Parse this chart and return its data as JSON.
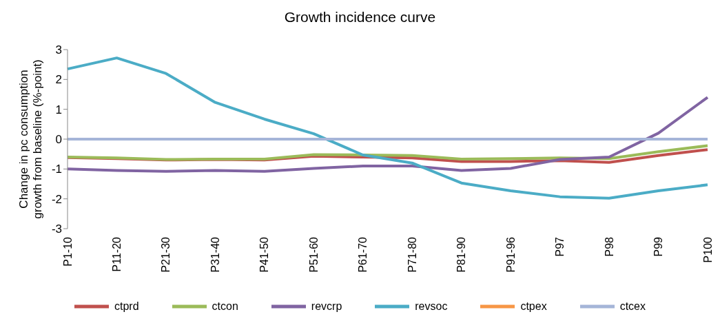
{
  "chart_data": {
    "type": "line",
    "title": "Growth incidence curve",
    "ylabel": "Change in pc consumption growth from baseline (%-point)",
    "categories": [
      "P1-10",
      "P11-20",
      "P21-30",
      "P31-40",
      "P41-50",
      "P51-60",
      "P61-70",
      "P71-80",
      "P81-90",
      "P91-96",
      "P97",
      "P98",
      "P99",
      "P100"
    ],
    "series": [
      {
        "name": "ctprd",
        "color": "#c0504d",
        "values": [
          -0.62,
          -0.65,
          -0.7,
          -0.68,
          -0.7,
          -0.57,
          -0.6,
          -0.63,
          -0.75,
          -0.75,
          -0.72,
          -0.78,
          -0.55,
          -0.35
        ]
      },
      {
        "name": "ctcon",
        "color": "#9bbb59",
        "values": [
          -0.6,
          -0.63,
          -0.68,
          -0.67,
          -0.67,
          -0.52,
          -0.53,
          -0.55,
          -0.67,
          -0.65,
          -0.63,
          -0.65,
          -0.42,
          -0.22
        ]
      },
      {
        "name": "revcrp",
        "color": "#8064a2",
        "values": [
          -1.0,
          -1.05,
          -1.08,
          -1.05,
          -1.08,
          -0.98,
          -0.9,
          -0.9,
          -1.05,
          -0.98,
          -0.68,
          -0.6,
          0.2,
          1.4
        ]
      },
      {
        "name": "revsoc",
        "color": "#4bacc6",
        "values": [
          2.35,
          2.72,
          2.2,
          1.23,
          0.67,
          0.18,
          -0.53,
          -0.8,
          -1.47,
          -1.73,
          -1.93,
          -1.98,
          -1.73,
          -1.53
        ]
      },
      {
        "name": "ctpex",
        "color": "#f79646",
        "values": [
          null,
          null,
          null,
          null,
          null,
          null,
          null,
          null,
          null,
          null,
          null,
          null,
          null,
          null
        ]
      },
      {
        "name": "ctcex",
        "color": "#a5b5d8",
        "values": [
          0,
          0,
          0,
          0,
          0,
          0,
          0,
          0,
          0,
          0,
          0,
          0,
          0,
          0
        ]
      }
    ],
    "ylim": [
      -3,
      3
    ],
    "yticks": [
      -3,
      -2,
      -1,
      0,
      1,
      2,
      3
    ],
    "legend": "bottom",
    "marker": "none",
    "line_style": "solid"
  }
}
